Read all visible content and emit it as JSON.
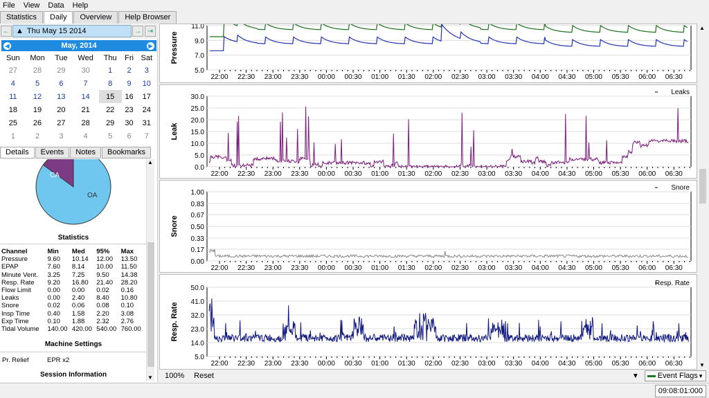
{
  "menu": [
    "File",
    "View",
    "Data",
    "Help"
  ],
  "tabs": [
    "Statistics",
    "Daily",
    "Overview",
    "Help Browser"
  ],
  "date_label": "Thu May 15 2014",
  "calendar": {
    "month": "May,  2014",
    "days": [
      "Sun",
      "Mon",
      "Tue",
      "Wed",
      "Thu",
      "Fri",
      "Sat"
    ],
    "weeks": [
      [
        "27",
        "28",
        "29",
        "30",
        "1",
        "2",
        "3"
      ],
      [
        "4",
        "5",
        "6",
        "7",
        "8",
        "9",
        "10"
      ],
      [
        "11",
        "12",
        "13",
        "14",
        "15",
        "16",
        "17"
      ],
      [
        "18",
        "19",
        "20",
        "21",
        "22",
        "23",
        "24"
      ],
      [
        "25",
        "26",
        "27",
        "28",
        "29",
        "30",
        "31"
      ],
      [
        "1",
        "2",
        "3",
        "4",
        "5",
        "6",
        "7"
      ]
    ]
  },
  "subtabs": [
    "Details",
    "Events",
    "Notes",
    "Bookmarks"
  ],
  "pie": {
    "ca_label": "CA",
    "oa_label": "OA",
    "ca_color": "#7d3a85",
    "oa_color": "#6fc6ef",
    "ca_fraction": 0.15
  },
  "statistics": {
    "title": "Statistics",
    "headers": [
      "Channel",
      "Min",
      "Med",
      "95%",
      "Max"
    ],
    "rows": [
      [
        "Pressure",
        "9.60",
        "10.14",
        "12.00",
        "13.50"
      ],
      [
        "EPAP",
        "7.60",
        "8.14",
        "10.00",
        "11.50"
      ],
      [
        "Minute Vent.",
        "3.25",
        "7.25",
        "9.50",
        "14.38"
      ],
      [
        "Resp. Rate",
        "9.20",
        "16.80",
        "21.40",
        "28.20"
      ],
      [
        "Flow Limit",
        "0.00",
        "0.00",
        "0.02",
        "0.16"
      ],
      [
        "Leaks",
        "0.00",
        "2.40",
        "8.40",
        "10.80"
      ],
      [
        "Snore",
        "0.02",
        "0.06",
        "0.08",
        "0.10"
      ],
      [
        "Insp Time",
        "0.40",
        "1.58",
        "2.20",
        "3.08"
      ],
      [
        "Exp Time",
        "0.10",
        "1.88",
        "2.32",
        "2.76"
      ],
      [
        "Tidal Volume",
        "140.00",
        "420.00",
        "540.00",
        "760.00"
      ]
    ],
    "machine_settings": "Machine Settings",
    "pr_relief_label": "Pr. Relief",
    "pr_relief_value": "EPR x2",
    "session_info": "Session Information"
  },
  "time_ticks": [
    "22:00",
    "22:30",
    "23:00",
    "23:30",
    "00:00",
    "00:30",
    "01:00",
    "01:30",
    "02:00",
    "02:30",
    "03:00",
    "03:30",
    "04:00",
    "04:30",
    "05:00",
    "05:30",
    "06:00",
    "06:30"
  ],
  "chart_data": [
    {
      "type": "line",
      "ylabel": "Pressure",
      "yticks": [
        "5.0",
        "7.0",
        "9.0",
        "11.0"
      ],
      "ylim": [
        5,
        11
      ],
      "series": [
        {
          "color": "#1a6e1a"
        },
        {
          "color": "#2030b0"
        }
      ]
    },
    {
      "type": "line",
      "ylabel": "Leak",
      "legend": "Leaks",
      "yticks": [
        "0.0",
        "5.0",
        "10.0",
        "15.0",
        "20.0",
        "25.0",
        "30.0"
      ],
      "ylim": [
        0,
        30
      ],
      "series": [
        {
          "name": "Leaks",
          "color": "#7a1a7a"
        }
      ]
    },
    {
      "type": "line",
      "ylabel": "Snore",
      "legend": "Snore",
      "yticks": [
        "0.00",
        "0.17",
        "0.33",
        "0.50",
        "0.67",
        "0.83",
        "1.00"
      ],
      "ylim": [
        0,
        1
      ],
      "series": [
        {
          "name": "Snore",
          "color": "#888888"
        }
      ]
    },
    {
      "type": "line",
      "ylabel": "Resp. Rate",
      "legend": "Resp. Rate",
      "yticks": [
        "5.0",
        "14.0",
        "23.0",
        "32.0",
        "41.0",
        "50.0"
      ],
      "ylim": [
        5,
        50
      ],
      "series": [
        {
          "name": "Resp. Rate",
          "color": "#101880"
        }
      ]
    }
  ],
  "bottom": {
    "zoom": "100%",
    "reset": "Reset",
    "event_flags": "Event Flags"
  },
  "clock": "09:08:01:000"
}
